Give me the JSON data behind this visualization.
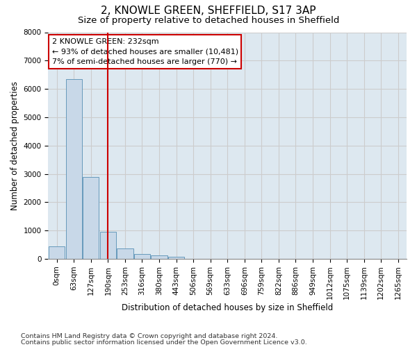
{
  "title": "2, KNOWLE GREEN, SHEFFIELD, S17 3AP",
  "subtitle": "Size of property relative to detached houses in Sheffield",
  "xlabel": "Distribution of detached houses by size in Sheffield",
  "ylabel": "Number of detached properties",
  "footnote1": "Contains HM Land Registry data © Crown copyright and database right 2024.",
  "footnote2": "Contains public sector information licensed under the Open Government Licence v3.0.",
  "categories": [
    "0sqm",
    "63sqm",
    "127sqm",
    "190sqm",
    "253sqm",
    "316sqm",
    "380sqm",
    "443sqm",
    "506sqm",
    "569sqm",
    "633sqm",
    "696sqm",
    "759sqm",
    "822sqm",
    "886sqm",
    "949sqm",
    "1012sqm",
    "1075sqm",
    "1139sqm",
    "1202sqm",
    "1265sqm"
  ],
  "values": [
    430,
    6350,
    2900,
    950,
    370,
    180,
    120,
    80,
    0,
    0,
    0,
    0,
    0,
    0,
    0,
    0,
    0,
    0,
    0,
    0,
    0
  ],
  "bar_color": "#c8d8e8",
  "bar_edge_color": "#6699bb",
  "annotation_box_color": "#cc0000",
  "annotation_line1": "2 KNOWLE GREEN: 232sqm",
  "annotation_line2": "← 93% of detached houses are smaller (10,481)",
  "annotation_line3": "7% of semi-detached houses are larger (770) →",
  "vline_color": "#cc0000",
  "ylim": [
    0,
    8000
  ],
  "yticks": [
    0,
    1000,
    2000,
    3000,
    4000,
    5000,
    6000,
    7000,
    8000
  ],
  "grid_color": "#cccccc",
  "bg_color": "#dde8f0",
  "title_fontsize": 11,
  "subtitle_fontsize": 9.5,
  "axis_label_fontsize": 8.5,
  "tick_fontsize": 7.5,
  "annotation_fontsize": 8,
  "footnote_fontsize": 6.8
}
